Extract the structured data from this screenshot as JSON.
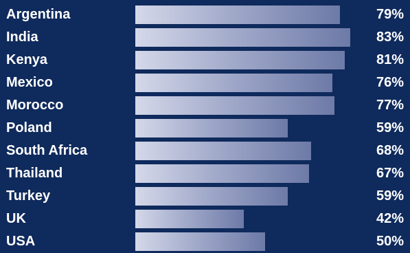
{
  "chart_data": {
    "type": "bar",
    "orientation": "horizontal",
    "categories": [
      "Argentina",
      "India",
      "Kenya",
      "Mexico",
      "Morocco",
      "Poland",
      "South Africa",
      "Thailand",
      "Turkey",
      "UK",
      "USA"
    ],
    "values": [
      79,
      83,
      81,
      76,
      77,
      59,
      68,
      67,
      59,
      42,
      50
    ],
    "value_labels": [
      "79%",
      "83%",
      "81%",
      "76%",
      "77%",
      "59%",
      "68%",
      "67%",
      "59%",
      "42%",
      "50%"
    ],
    "xlim": [
      0,
      100
    ],
    "grid": false,
    "legend": "none",
    "colors": {
      "background": "#0f2a5c",
      "text": "#ffffff",
      "bar_start": "#d4d8e9",
      "bar_end": "#6d7aa7"
    }
  }
}
